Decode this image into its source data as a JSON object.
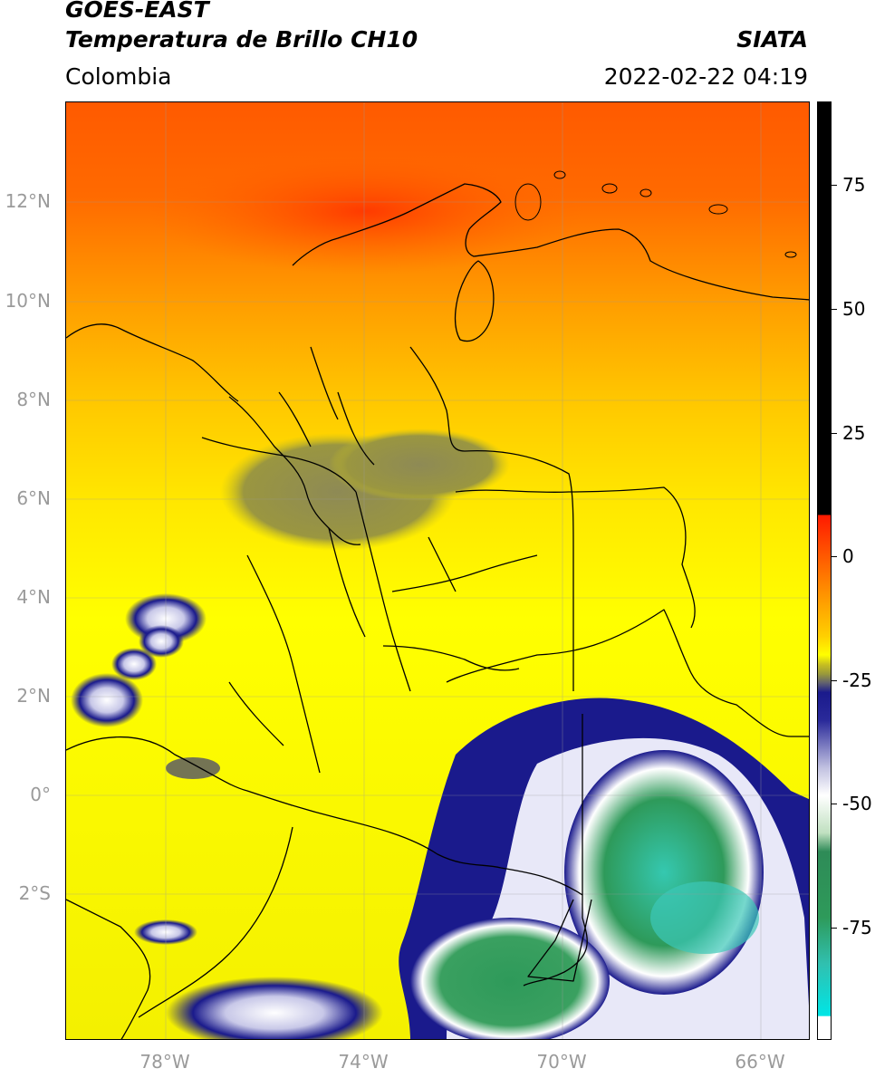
{
  "header": {
    "satellite": "GOES-EAST",
    "product": "Temperatura de Brillo CH10",
    "brand": "SIATA",
    "region": "Colombia",
    "datetime": "2022-02-22 04:19"
  },
  "map": {
    "lat_ticks": [
      "12°N",
      "10°N",
      "8°N",
      "6°N",
      "4°N",
      "2°N",
      "0°",
      "2°S"
    ],
    "lon_ticks": [
      "78°W",
      "74°W",
      "70°W",
      "66°W"
    ]
  },
  "colorbar": {
    "tick_labels": [
      "75",
      "50",
      "25",
      "0",
      "-25",
      "-50",
      "-75"
    ],
    "tick_values": [
      75,
      50,
      25,
      0,
      -25,
      -50,
      -75
    ],
    "range": [
      -90,
      90
    ],
    "colors": {
      "hot": "#ff1a00",
      "orange": "#ff8c00",
      "yellow": "#ffff00",
      "olive": "#9a9a3a",
      "navy": "#1a1a8c",
      "white": "#ffffff",
      "green": "#2e8b57",
      "cyan": "#00e5e5",
      "black": "#000000"
    }
  }
}
